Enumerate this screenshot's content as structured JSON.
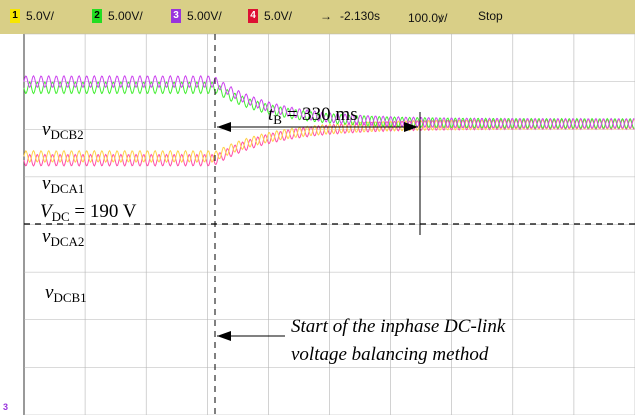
{
  "status_bar": {
    "channels": [
      {
        "number": "1",
        "scale": "5.0V/",
        "color": "#f7e600"
      },
      {
        "number": "2",
        "scale": "5.00V/",
        "color": "#22dd22"
      },
      {
        "number": "3",
        "scale": "5.00V/",
        "color": "#9933dd"
      },
      {
        "number": "4",
        "scale": "5.0V/",
        "color": "#dd1133"
      }
    ],
    "trigger_arrow": "→",
    "time_offset": "-2.130s",
    "time_scale": "100.0́/",
    "time_scale_text": "100.0ꝟ/",
    "run_state": "Stop"
  },
  "ground_marker": "3",
  "annotations": {
    "vdcb2": {
      "main": "v",
      "sub": "DCB2"
    },
    "vdca1": {
      "main": "v",
      "sub": "DCA1"
    },
    "vdc": {
      "main": "V",
      "sub": "DC",
      "rest": " = 190 V"
    },
    "vdca2": {
      "main": "v",
      "sub": "DCA2"
    },
    "vdcb1": {
      "main": "v",
      "sub": "DCB1"
    },
    "tb": {
      "main": "t",
      "sub": "B",
      "rest": " = 330 ms"
    },
    "method_line1": "Start of the inphase DC-link",
    "method_line2": "voltage balancing method"
  },
  "chart_data": {
    "type": "line",
    "title": "",
    "xlabel": "",
    "ylabel": "",
    "x_unit": "ms",
    "x_range": [
      -200,
      560
    ],
    "y_unit": "divisions",
    "grid": true,
    "grid_divisions": {
      "x": 10,
      "y": 8
    },
    "series": [
      {
        "name": "vDCB2",
        "color": "#ff4fa8",
        "before_level": 2.65,
        "after_level": 1.9,
        "ripple_amplitude": 0.12
      },
      {
        "name": "vDCA1",
        "color": "#ffd24a",
        "before_level": 2.57,
        "after_level": 1.9,
        "ripple_amplitude": 0.12
      },
      {
        "name": "vDCA2",
        "color": "#44ee33",
        "before_level": 1.13,
        "after_level": 1.88,
        "ripple_amplitude": 0.12
      },
      {
        "name": "vDCB1",
        "color": "#cc44ee",
        "before_level": 1.0,
        "after_level": 1.88,
        "ripple_amplitude": 0.12
      }
    ],
    "switch_time": 0,
    "settling_time": 330,
    "reference_level": 1.93
  }
}
